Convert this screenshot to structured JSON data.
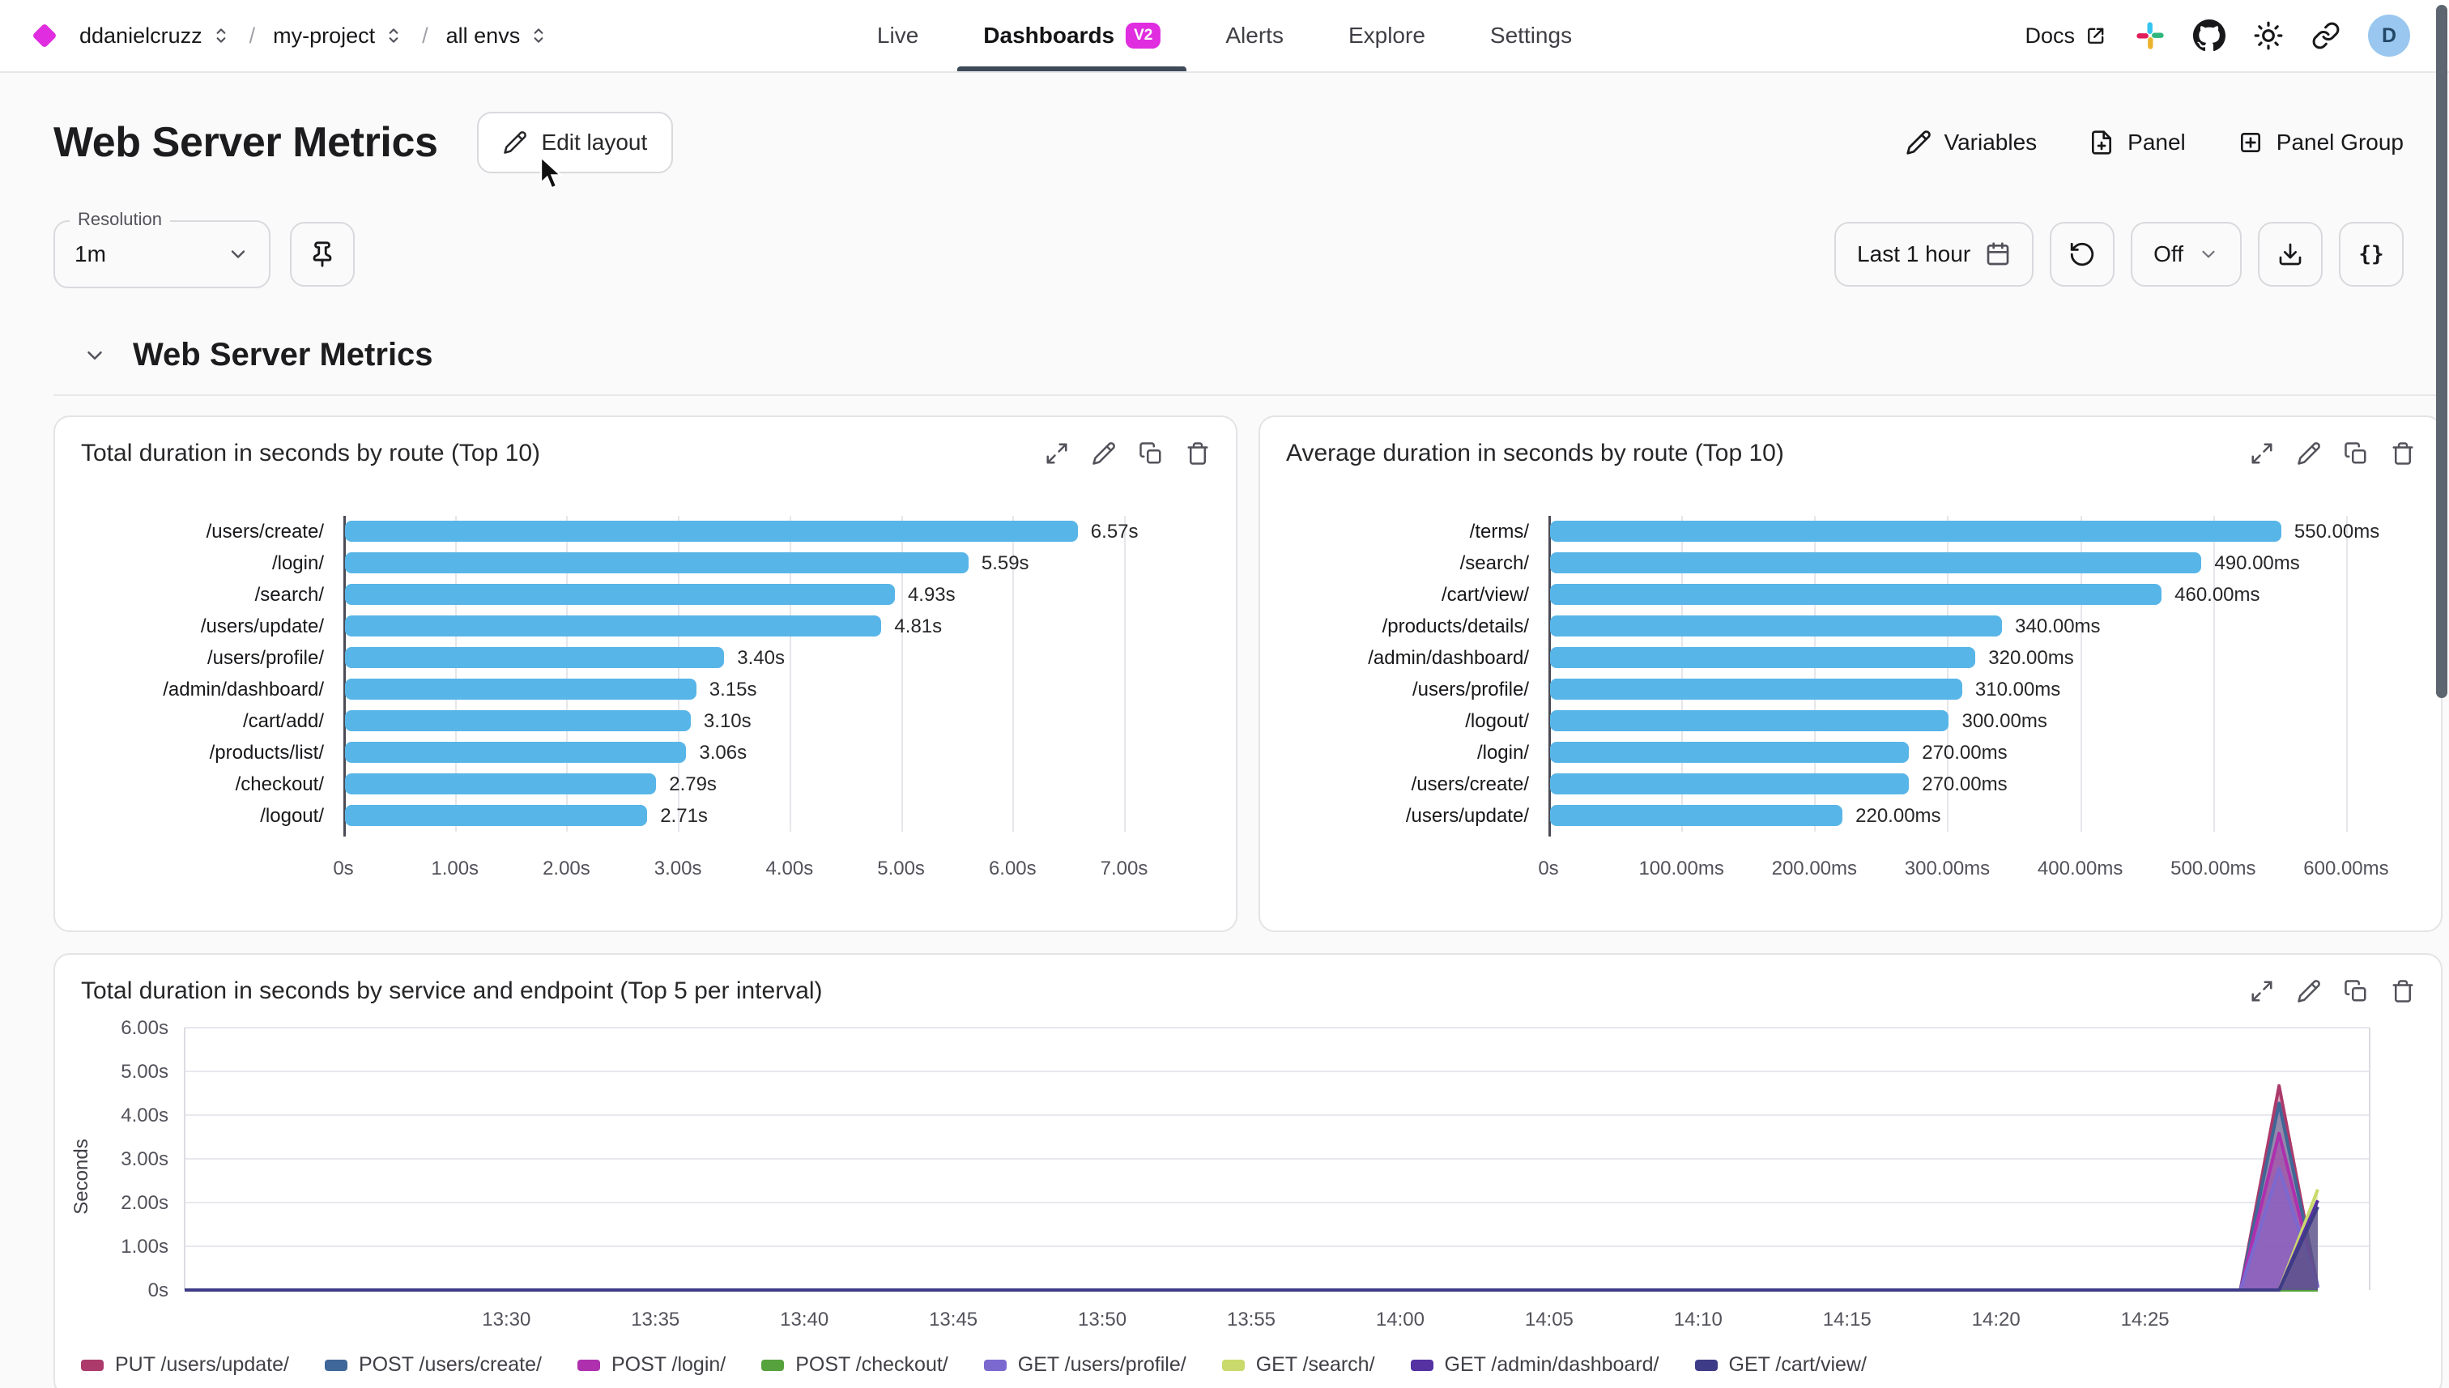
{
  "colors": {
    "accent": "#df2ddf",
    "bar_blue": "#58b5e8",
    "nav_underline": "#3f4a59",
    "avatar_bg": "#9ac7f0"
  },
  "topnav": {
    "breadcrumbs": [
      {
        "label": "ddanielcruzz"
      },
      {
        "label": "my-project"
      },
      {
        "label": "all envs"
      }
    ],
    "tabs": [
      {
        "label": "Live",
        "active": false
      },
      {
        "label": "Dashboards",
        "active": true,
        "badge": "V2"
      },
      {
        "label": "Alerts",
        "active": false
      },
      {
        "label": "Explore",
        "active": false
      },
      {
        "label": "Settings",
        "active": false
      }
    ],
    "docs_label": "Docs",
    "avatar_initial": "D"
  },
  "header": {
    "title": "Web Server Metrics",
    "edit_layout_label": "Edit layout",
    "actions": [
      {
        "label": "Variables",
        "icon": "pencil-icon"
      },
      {
        "label": "Panel",
        "icon": "file-plus-icon"
      },
      {
        "label": "Panel Group",
        "icon": "square-plus-icon"
      }
    ]
  },
  "toolbar": {
    "resolution_label": "Resolution",
    "resolution_value": "1m",
    "time_range_label": "Last 1 hour",
    "refresh_mode_label": "Off",
    "braces_label": "{}"
  },
  "section": {
    "title": "Web Server Metrics"
  },
  "chart_data": [
    {
      "type": "bar",
      "orientation": "horizontal",
      "title": "Total duration in seconds by route (Top 10)",
      "categories": [
        "/users/create/",
        "/login/",
        "/search/",
        "/users/update/",
        "/users/profile/",
        "/admin/dashboard/",
        "/cart/add/",
        "/products/list/",
        "/checkout/",
        "/logout/"
      ],
      "values": [
        6.57,
        5.59,
        4.93,
        4.81,
        3.4,
        3.15,
        3.1,
        3.06,
        2.79,
        2.71
      ],
      "value_labels": [
        "6.57s",
        "5.59s",
        "4.93s",
        "4.81s",
        "3.40s",
        "3.15s",
        "3.10s",
        "3.06s",
        "2.79s",
        "2.71s"
      ],
      "x_tick_labels": [
        "0s",
        "1.00s",
        "2.00s",
        "3.00s",
        "4.00s",
        "5.00s",
        "6.00s",
        "7.00s"
      ],
      "x_tick_values": [
        0,
        1,
        2,
        3,
        4,
        5,
        6,
        7
      ],
      "axis_max": 7.45,
      "bar_color": "#58b5e8"
    },
    {
      "type": "bar",
      "orientation": "horizontal",
      "title": "Average duration in seconds by route (Top 10)",
      "categories": [
        "/terms/",
        "/search/",
        "/cart/view/",
        "/products/details/",
        "/admin/dashboard/",
        "/users/profile/",
        "/logout/",
        "/login/",
        "/users/create/",
        "/users/update/"
      ],
      "values": [
        550,
        490,
        460,
        340,
        320,
        310,
        300,
        270,
        270,
        220
      ],
      "value_labels": [
        "550.00ms",
        "490.00ms",
        "460.00ms",
        "340.00ms",
        "320.00ms",
        "310.00ms",
        "300.00ms",
        "270.00ms",
        "270.00ms",
        "220.00ms"
      ],
      "x_tick_labels": [
        "0s",
        "100.00ms",
        "200.00ms",
        "300.00ms",
        "400.00ms",
        "500.00ms",
        "600.00ms"
      ],
      "x_tick_values": [
        0,
        100,
        200,
        300,
        400,
        500,
        600
      ],
      "axis_max": 625,
      "bar_color": "#58b5e8"
    },
    {
      "type": "area",
      "title": "Total duration in seconds by service and endpoint (Top 5 per interval)",
      "ylabel": "Seconds",
      "y_tick_labels": [
        "0s",
        "1.00s",
        "2.00s",
        "3.00s",
        "4.00s",
        "5.00s",
        "6.00s"
      ],
      "y_max": 6,
      "x_tick_labels": [
        "13:30",
        "13:35",
        "13:40",
        "13:45",
        "13:50",
        "13:55",
        "14:00",
        "14:05",
        "14:10",
        "14:15",
        "14:20",
        "14:25"
      ],
      "x_tick_minutes": [
        0,
        5,
        10,
        15,
        20,
        25,
        30,
        35,
        40,
        45,
        50,
        55
      ],
      "x_domain_minutes": [
        -10.8,
        60.8
      ],
      "series": [
        {
          "name": "PUT /users/update/",
          "color": "#ac3a6b",
          "points": [
            [
              -10.8,
              0
            ],
            [
              58.2,
              0
            ],
            [
              59.5,
              4.67
            ],
            [
              60.8,
              0.05
            ]
          ]
        },
        {
          "name": "POST /users/create/",
          "color": "#3f6797",
          "points": [
            [
              -10.8,
              0
            ],
            [
              58.2,
              0
            ],
            [
              59.5,
              4.27
            ],
            [
              60.8,
              0.08
            ]
          ]
        },
        {
          "name": "POST /login/",
          "color": "#ae30ae",
          "points": [
            [
              -10.8,
              0
            ],
            [
              58.2,
              0
            ],
            [
              59.5,
              3.58
            ],
            [
              60.8,
              0.05
            ]
          ]
        },
        {
          "name": "POST /checkout/",
          "color": "#56a23c",
          "points": [
            [
              -10.8,
              0
            ],
            [
              60.8,
              0
            ]
          ]
        },
        {
          "name": "GET /users/profile/",
          "color": "#7b69d0",
          "points": [
            [
              -10.8,
              0
            ],
            [
              58.2,
              0
            ],
            [
              59.5,
              2.78
            ],
            [
              60.8,
              0.05
            ]
          ]
        },
        {
          "name": "GET /search/",
          "color": "#c9d96b",
          "points": [
            [
              -10.8,
              0
            ],
            [
              59.5,
              0
            ],
            [
              60.8,
              2.3
            ]
          ]
        },
        {
          "name": "GET /admin/dashboard/",
          "color": "#5531a2",
          "points": [
            [
              -10.8,
              0
            ],
            [
              59.5,
              0
            ],
            [
              60.8,
              2.05
            ]
          ]
        },
        {
          "name": "GET /cart/view/",
          "color": "#3e3b87",
          "points": [
            [
              -10.8,
              0
            ],
            [
              59.5,
              0
            ],
            [
              60.8,
              1.9
            ]
          ]
        }
      ]
    }
  ]
}
